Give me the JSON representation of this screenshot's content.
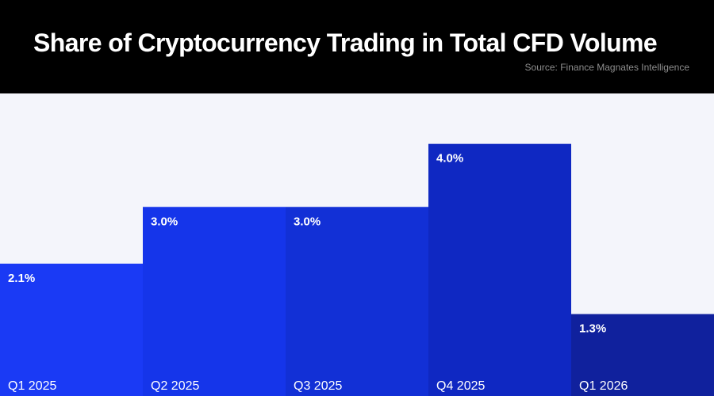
{
  "header": {
    "title": "Share of Cryptocurrency Trading in Total CFD Volume",
    "source": "Source: Finance Magnates Intelligence"
  },
  "colors": {
    "header_background": "#000000",
    "plot_background": "#f4f5fb",
    "bar_colors": [
      "#1a3af5",
      "#1535ea",
      "#1230d6",
      "#0f28c2",
      "#10219d"
    ]
  },
  "chart_data": {
    "type": "bar",
    "categories": [
      "Q1 2025",
      "Q2 2025",
      "Q3 2025",
      "Q4 2025",
      "Q1 2026"
    ],
    "values": [
      2.1,
      3.0,
      3.0,
      4.0,
      1.3
    ],
    "value_labels": [
      "2.1%",
      "3.0%",
      "3.0%",
      "4.0%",
      "1.3%"
    ],
    "unit": "%",
    "ylim": [
      0,
      4.8
    ],
    "grid": false,
    "legend": "none"
  }
}
